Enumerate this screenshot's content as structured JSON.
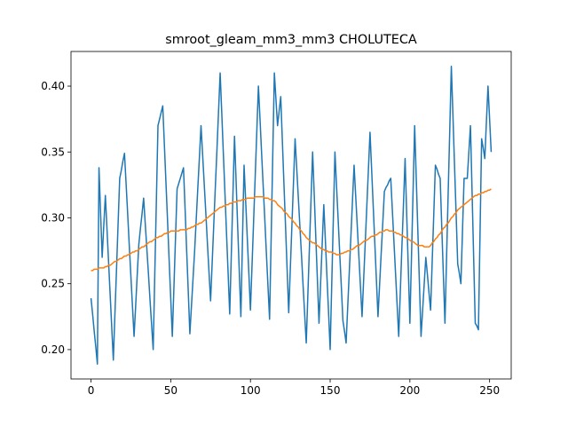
{
  "chart_data": {
    "type": "line",
    "title": "smroot_gleam_mm3_mm3 CHOLUTECA",
    "x": [
      0,
      1,
      2,
      3,
      4,
      5,
      6,
      7,
      8,
      9,
      10,
      11,
      12,
      13,
      14,
      15,
      16,
      17,
      18,
      19,
      20,
      21,
      22,
      23,
      24,
      25,
      26,
      27,
      28,
      29,
      30,
      31,
      32,
      33,
      34,
      35,
      36,
      37,
      38,
      39,
      40,
      41,
      42,
      43,
      44,
      45,
      46,
      47,
      48,
      49,
      50,
      51,
      52,
      53,
      54,
      55,
      56,
      57,
      58,
      59,
      60,
      61,
      62,
      63,
      64,
      65,
      66,
      67,
      68,
      69,
      70,
      71,
      72,
      73,
      74,
      75,
      76,
      77,
      78,
      79,
      80,
      81,
      82,
      83,
      84,
      85,
      86,
      87,
      88,
      89,
      90,
      91,
      92,
      93,
      94,
      95,
      96,
      97,
      98,
      99,
      100,
      101,
      102,
      103,
      104,
      105,
      106,
      107,
      108,
      109,
      110,
      111,
      112,
      113,
      114,
      115,
      116,
      117,
      118,
      119,
      120,
      121,
      122,
      123,
      124,
      125,
      126,
      127,
      128,
      129,
      130,
      131,
      132,
      133,
      134,
      135,
      136,
      137,
      138,
      139,
      140,
      141,
      142,
      143,
      144,
      145,
      146,
      147,
      148,
      149,
      150,
      151,
      152,
      153,
      154,
      155,
      156,
      157,
      158,
      159,
      160,
      161,
      162,
      163,
      164,
      165,
      166,
      167,
      168,
      169,
      170,
      171,
      172,
      173,
      174,
      175,
      176,
      177,
      178,
      179,
      180,
      181,
      182,
      183,
      184,
      185,
      186,
      187,
      188,
      189,
      190,
      191,
      192,
      193,
      194,
      195,
      196,
      197,
      198,
      199,
      200,
      201,
      202,
      203,
      204,
      205,
      206,
      207,
      208,
      209,
      210,
      211,
      212,
      213,
      214,
      215,
      216,
      217,
      218,
      219,
      220,
      221,
      222,
      223,
      224,
      225,
      226,
      227,
      228,
      229,
      230,
      231,
      232,
      233,
      234,
      235,
      236,
      237,
      238,
      239,
      240,
      241,
      242,
      243,
      244,
      245,
      246,
      247,
      248,
      249,
      250,
      251
    ],
    "series": [
      {
        "color": "#1f77b4",
        "values": [
          0.239,
          0.227,
          0.214,
          0.202,
          0.189,
          0.338,
          0.304,
          0.27,
          0.294,
          0.317,
          0.292,
          0.267,
          0.242,
          0.217,
          0.192,
          0.227,
          0.261,
          0.296,
          0.33,
          0.336,
          0.343,
          0.349,
          0.326,
          0.303,
          0.279,
          0.256,
          0.233,
          0.21,
          0.233,
          0.257,
          0.28,
          0.292,
          0.303,
          0.315,
          0.296,
          0.277,
          0.258,
          0.238,
          0.219,
          0.2,
          0.257,
          0.313,
          0.37,
          0.375,
          0.38,
          0.385,
          0.356,
          0.327,
          0.298,
          0.268,
          0.239,
          0.21,
          0.247,
          0.285,
          0.322,
          0.326,
          0.33,
          0.334,
          0.338,
          0.307,
          0.275,
          0.244,
          0.212,
          0.233,
          0.254,
          0.275,
          0.299,
          0.323,
          0.346,
          0.37,
          0.348,
          0.326,
          0.304,
          0.281,
          0.259,
          0.237,
          0.266,
          0.295,
          0.324,
          0.352,
          0.381,
          0.41,
          0.38,
          0.349,
          0.319,
          0.288,
          0.258,
          0.227,
          0.272,
          0.317,
          0.362,
          0.328,
          0.293,
          0.259,
          0.225,
          0.283,
          0.34,
          0.313,
          0.285,
          0.258,
          0.23,
          0.264,
          0.298,
          0.332,
          0.366,
          0.4,
          0.375,
          0.349,
          0.324,
          0.299,
          0.273,
          0.248,
          0.223,
          0.285,
          0.348,
          0.41,
          0.39,
          0.37,
          0.381,
          0.392,
          0.359,
          0.326,
          0.294,
          0.261,
          0.228,
          0.261,
          0.294,
          0.327,
          0.36,
          0.338,
          0.316,
          0.294,
          0.272,
          0.249,
          0.227,
          0.205,
          0.241,
          0.278,
          0.314,
          0.35,
          0.318,
          0.285,
          0.253,
          0.22,
          0.25,
          0.28,
          0.31,
          0.283,
          0.255,
          0.228,
          0.2,
          0.25,
          0.3,
          0.35,
          0.324,
          0.299,
          0.273,
          0.248,
          0.222,
          0.214,
          0.205,
          0.232,
          0.259,
          0.286,
          0.313,
          0.34,
          0.317,
          0.294,
          0.271,
          0.248,
          0.225,
          0.253,
          0.281,
          0.309,
          0.337,
          0.365,
          0.337,
          0.309,
          0.281,
          0.253,
          0.225,
          0.249,
          0.273,
          0.296,
          0.32,
          0.323,
          0.325,
          0.328,
          0.33,
          0.306,
          0.282,
          0.258,
          0.234,
          0.21,
          0.244,
          0.278,
          0.311,
          0.345,
          0.303,
          0.262,
          0.22,
          0.27,
          0.32,
          0.37,
          0.33,
          0.29,
          0.25,
          0.21,
          0.23,
          0.25,
          0.27,
          0.257,
          0.243,
          0.23,
          0.267,
          0.303,
          0.34,
          0.337,
          0.333,
          0.33,
          0.293,
          0.257,
          0.22,
          0.269,
          0.318,
          0.366,
          0.415,
          0.378,
          0.34,
          0.303,
          0.265,
          0.258,
          0.25,
          0.29,
          0.33,
          0.33,
          0.33,
          0.35,
          0.37,
          0.32,
          0.27,
          0.22,
          0.218,
          0.215,
          0.288,
          0.36,
          0.353,
          0.345,
          0.373,
          0.4,
          0.375,
          0.35
        ]
      },
      {
        "color": "#ff7f0e",
        "values": [
          0.26,
          0.26,
          0.261,
          0.261,
          0.261,
          0.262,
          0.262,
          0.262,
          0.262,
          0.263,
          0.263,
          0.264,
          0.264,
          0.265,
          0.266,
          0.267,
          0.267,
          0.268,
          0.269,
          0.269,
          0.27,
          0.271,
          0.271,
          0.272,
          0.272,
          0.273,
          0.274,
          0.274,
          0.275,
          0.275,
          0.276,
          0.277,
          0.278,
          0.278,
          0.279,
          0.28,
          0.281,
          0.282,
          0.282,
          0.283,
          0.284,
          0.285,
          0.285,
          0.286,
          0.286,
          0.287,
          0.288,
          0.288,
          0.289,
          0.289,
          0.29,
          0.29,
          0.29,
          0.29,
          0.29,
          0.29,
          0.291,
          0.291,
          0.291,
          0.291,
          0.291,
          0.292,
          0.292,
          0.293,
          0.293,
          0.294,
          0.295,
          0.295,
          0.296,
          0.296,
          0.297,
          0.298,
          0.299,
          0.3,
          0.301,
          0.302,
          0.303,
          0.304,
          0.305,
          0.306,
          0.307,
          0.308,
          0.308,
          0.309,
          0.309,
          0.31,
          0.31,
          0.311,
          0.311,
          0.312,
          0.312,
          0.312,
          0.313,
          0.313,
          0.313,
          0.314,
          0.314,
          0.314,
          0.315,
          0.315,
          0.315,
          0.315,
          0.315,
          0.316,
          0.316,
          0.316,
          0.316,
          0.316,
          0.316,
          0.315,
          0.315,
          0.315,
          0.314,
          0.314,
          0.313,
          0.313,
          0.312,
          0.31,
          0.309,
          0.308,
          0.307,
          0.305,
          0.304,
          0.303,
          0.301,
          0.3,
          0.299,
          0.297,
          0.296,
          0.294,
          0.293,
          0.291,
          0.29,
          0.288,
          0.287,
          0.285,
          0.284,
          0.283,
          0.282,
          0.281,
          0.281,
          0.28,
          0.279,
          0.278,
          0.277,
          0.276,
          0.276,
          0.275,
          0.275,
          0.274,
          0.274,
          0.274,
          0.273,
          0.273,
          0.272,
          0.272,
          0.272,
          0.273,
          0.273,
          0.274,
          0.274,
          0.275,
          0.275,
          0.276,
          0.276,
          0.277,
          0.278,
          0.279,
          0.279,
          0.28,
          0.281,
          0.282,
          0.283,
          0.283,
          0.284,
          0.285,
          0.286,
          0.286,
          0.287,
          0.287,
          0.288,
          0.289,
          0.289,
          0.29,
          0.29,
          0.291,
          0.291,
          0.29,
          0.29,
          0.29,
          0.289,
          0.289,
          0.288,
          0.288,
          0.287,
          0.287,
          0.286,
          0.285,
          0.285,
          0.284,
          0.283,
          0.282,
          0.282,
          0.281,
          0.28,
          0.279,
          0.279,
          0.279,
          0.279,
          0.278,
          0.278,
          0.278,
          0.278,
          0.279,
          0.281,
          0.282,
          0.284,
          0.285,
          0.287,
          0.288,
          0.29,
          0.292,
          0.293,
          0.295,
          0.296,
          0.298,
          0.3,
          0.301,
          0.303,
          0.304,
          0.306,
          0.307,
          0.308,
          0.309,
          0.31,
          0.311,
          0.312,
          0.313,
          0.314,
          0.315,
          0.316,
          0.317,
          0.317,
          0.318,
          0.318,
          0.319,
          0.319,
          0.32,
          0.32,
          0.321,
          0.321,
          0.322
        ]
      }
    ],
    "xlim": [
      -12.55,
      263.55
    ],
    "xticks": [
      0,
      50,
      100,
      150,
      200,
      250
    ],
    "ylim": [
      0.1777,
      0.4263
    ],
    "yticks": [
      {
        "value": 0.2,
        "label": "0.20"
      },
      {
        "value": 0.25,
        "label": "0.25"
      },
      {
        "value": 0.3,
        "label": "0.30"
      },
      {
        "value": 0.35,
        "label": "0.35"
      },
      {
        "value": 0.4,
        "label": "0.40"
      }
    ]
  }
}
